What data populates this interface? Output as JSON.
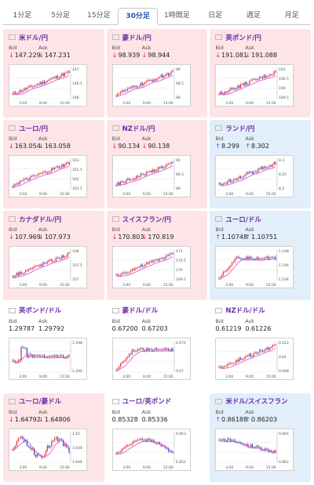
{
  "tabs": [
    {
      "label": "1分足",
      "active": false
    },
    {
      "label": "5分足",
      "active": false
    },
    {
      "label": "15分足",
      "active": false
    },
    {
      "label": "30分足",
      "active": true
    },
    {
      "label": "1時間足",
      "active": false
    },
    {
      "label": "日足",
      "active": false
    },
    {
      "label": "週足",
      "active": false
    },
    {
      "label": "月足",
      "active": false
    }
  ],
  "labels": {
    "bid": "Bid",
    "ask": "Ask"
  },
  "x_ticks": [
    "3:00",
    "9:00",
    "15:00"
  ],
  "colors": {
    "down_bg": "#fde4e7",
    "up_bg": "#e2eef9",
    "down_arrow": "#d63636",
    "up_arrow": "#1c74c8",
    "ma_line": "#d946d9",
    "candle_up": "#e03030",
    "candle_down": "#2a4fc0"
  },
  "cards": [
    {
      "name": "米ドル/円",
      "flag": "us",
      "state": "down",
      "bid": "147.229",
      "ask": "147.231",
      "arrow_bid": "↓",
      "arrow_ask": "↓",
      "y_ticks": [
        "147",
        "146.5",
        "146"
      ],
      "trend": "up"
    },
    {
      "name": "豪ドル/円",
      "flag": "au",
      "state": "down",
      "bid": "98.939",
      "ask": "98.944",
      "arrow_bid": "↓",
      "arrow_ask": "↓",
      "y_ticks": [
        "99",
        "98.5",
        "98"
      ],
      "trend": "up"
    },
    {
      "name": "英ポンド/円",
      "flag": "gb",
      "state": "down",
      "bid": "191.081",
      "ask": "191.088",
      "arrow_bid": "↓",
      "arrow_ask": "↓",
      "y_ticks": [
        "191",
        "190.5",
        "190",
        "189.5"
      ],
      "trend": "up"
    },
    {
      "name": "ユーロ/円",
      "flag": "eu",
      "state": "down",
      "bid": "163.054",
      "ask": "163.058",
      "arrow_bid": "↓",
      "arrow_ask": "↓",
      "y_ticks": [
        "163",
        "162.5",
        "162",
        "161.5"
      ],
      "trend": "up"
    },
    {
      "name": "NZドル/円",
      "flag": "nz",
      "state": "down",
      "bid": "90.134",
      "ask": "90.138",
      "arrow_bid": "↓",
      "arrow_ask": "↓",
      "y_ticks": [
        "90",
        "89.5",
        "89"
      ],
      "trend": "up"
    },
    {
      "name": "ランド/円",
      "flag": "za",
      "state": "up",
      "bid": "8.299",
      "ask": "8.302",
      "arrow_bid": "↑",
      "arrow_ask": "↑",
      "y_ticks": [
        "8.3",
        "8.25",
        "8.2"
      ],
      "trend": "up"
    },
    {
      "name": "カナダドル/円",
      "flag": "ca",
      "state": "down",
      "bid": "107.969",
      "ask": "107.973",
      "arrow_bid": "↓",
      "arrow_ask": "↓",
      "y_ticks": [
        "108",
        "107.5",
        "107"
      ],
      "trend": "up"
    },
    {
      "name": "スイスフラン/円",
      "flag": "ch",
      "state": "down",
      "bid": "170.803",
      "ask": "170.819",
      "arrow_bid": "↓",
      "arrow_ask": "↓",
      "y_ticks": [
        "171",
        "170.5",
        "170",
        "169.5"
      ],
      "trend": "up"
    },
    {
      "name": "ユーロ/ドル",
      "flag": "eu",
      "state": "up",
      "bid": "1.10748",
      "ask": "1.10751",
      "arrow_bid": "↑",
      "arrow_ask": "↑",
      "y_ticks": [
        "1.108",
        "1.106",
        "1.104"
      ],
      "trend": "rise_flat"
    },
    {
      "name": "英ポンド/ドル",
      "flag": "gb",
      "state": "flat",
      "bid": "1.29787",
      "ask": "1.29792",
      "arrow_bid": "",
      "arrow_ask": "",
      "y_ticks": [
        "1.298",
        "1.296"
      ],
      "trend": "spike_flat"
    },
    {
      "name": "豪ドル/ドル",
      "flag": "au",
      "state": "flat",
      "bid": "0.67200",
      "ask": "0.67203",
      "arrow_bid": "",
      "arrow_ask": "",
      "y_ticks": [
        "0.672",
        "0.67"
      ],
      "trend": "rise_flat"
    },
    {
      "name": "NZドル/ドル",
      "flag": "nz",
      "state": "flat",
      "bid": "0.61219",
      "ask": "0.61226",
      "arrow_bid": "",
      "arrow_ask": "",
      "y_ticks": [
        "0.612",
        "0.61",
        "0.608"
      ],
      "trend": "up"
    },
    {
      "name": "ユーロ/豪ドル",
      "flag": "eu",
      "state": "down",
      "bid": "1.64792",
      "ask": "1.64806",
      "arrow_bid": "↓",
      "arrow_ask": "↓",
      "y_ticks": [
        "1.65",
        "1.648",
        "1.646"
      ],
      "trend": "choppy"
    },
    {
      "name": "ユーロ/英ポンド",
      "flag": "eu",
      "state": "flat",
      "bid": "0.85328",
      "ask": "0.85336",
      "arrow_bid": "",
      "arrow_ask": "",
      "y_ticks": [
        "0.853",
        "0.852"
      ],
      "trend": "hump"
    },
    {
      "name": "米ドル/スイスフラン",
      "flag": "us",
      "state": "up",
      "bid": "0.86188",
      "ask": "0.86203",
      "arrow_bid": "↑",
      "arrow_ask": "↑",
      "y_ticks": [
        "0.864",
        "0.862"
      ],
      "trend": "down"
    }
  ]
}
